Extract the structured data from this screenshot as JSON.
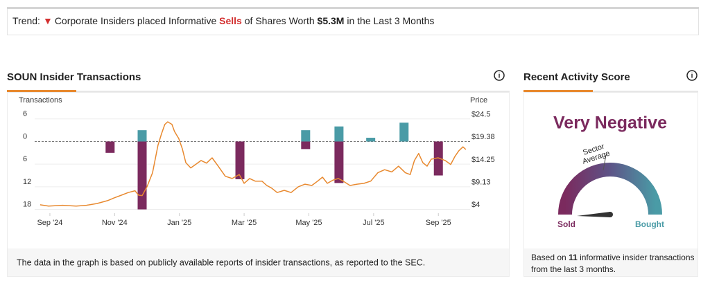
{
  "banner": {
    "label": "Trend:",
    "text_before": "Corporate Insiders placed Informative",
    "action": "Sells",
    "text_middle": "of Shares Worth",
    "amount": "$5.3M",
    "text_after": "in the Last 3 Months"
  },
  "chart_data": {
    "type": "combo",
    "title": "SOUN Insider Transactions",
    "y_label": "Transactions",
    "y2_label": "Price",
    "xlim": [
      -0.47,
      12.98
    ],
    "xticks": [
      {
        "value": 0,
        "label": "Sep '24"
      },
      {
        "value": 2,
        "label": "Nov '24"
      },
      {
        "value": 4,
        "label": "Jan '25"
      },
      {
        "value": 6,
        "label": "Mar '25"
      },
      {
        "value": 8,
        "label": "May '25"
      },
      {
        "value": 10,
        "label": "Jul '25"
      },
      {
        "value": 12,
        "label": "Sep '25"
      }
    ],
    "ylim": [
      -19,
      10
    ],
    "yticks": [
      6,
      0,
      {
        "value": -6,
        "label": "6"
      },
      {
        "value": -12,
        "label": "12"
      },
      {
        "value": -18,
        "label": "18"
      }
    ],
    "y2lim": [
      3.2,
      28.1
    ],
    "y2ticks": [
      {
        "value": 24.5,
        "label": "$24.5"
      },
      {
        "value": 19.38,
        "label": "$19.38"
      },
      {
        "value": 14.25,
        "label": "$14.25"
      },
      {
        "value": 9.13,
        "label": "$9.13"
      },
      {
        "value": 4,
        "label": "$4"
      }
    ],
    "grid": true,
    "series": [
      {
        "type": "bar",
        "color": "#4a9ba6",
        "x": [
          2.85,
          7.9,
          8.93,
          9.91,
          10.94
        ],
        "values": [
          3,
          3,
          4,
          1,
          5
        ]
      },
      {
        "type": "bar",
        "color": "#7b2a5e",
        "x": [
          1.86,
          2.85,
          5.87,
          7.9,
          8.93,
          12.0
        ],
        "values": [
          -3,
          -18,
          -10,
          -2,
          -11,
          -9
        ]
      },
      {
        "type": "line",
        "color": "#e8892f",
        "axis": "y2",
        "x": [
          -0.3,
          -0.04,
          0.39,
          0.81,
          1.13,
          1.46,
          1.78,
          1.99,
          2.21,
          2.42,
          2.63,
          2.74,
          2.85,
          3.0,
          3.17,
          3.34,
          3.45,
          3.55,
          3.64,
          3.77,
          3.85,
          3.98,
          4.09,
          4.2,
          4.35,
          4.5,
          4.67,
          4.84,
          5.01,
          5.2,
          5.42,
          5.63,
          5.85,
          6.0,
          6.17,
          6.34,
          6.55,
          6.7,
          6.85,
          7.02,
          7.24,
          7.45,
          7.67,
          7.88,
          8.09,
          8.27,
          8.42,
          8.57,
          8.74,
          8.91,
          9.06,
          9.27,
          9.49,
          9.7,
          9.91,
          10.13,
          10.34,
          10.56,
          10.77,
          10.98,
          11.13,
          11.26,
          11.39,
          11.52,
          11.65,
          11.78,
          11.99,
          12.21,
          12.38,
          12.51,
          12.63,
          12.76,
          12.85
        ],
        "values": [
          5.1,
          4.8,
          5.0,
          4.8,
          5.0,
          5.4,
          6.05,
          6.7,
          7.3,
          7.9,
          8.3,
          7.3,
          7.2,
          9.2,
          12.4,
          18.7,
          21.3,
          23.4,
          24.0,
          23.4,
          21.8,
          20.2,
          17.9,
          14.7,
          13.5,
          14.3,
          15.2,
          14.6,
          15.8,
          13.9,
          11.6,
          11.1,
          12.0,
          10.0,
          11.1,
          10.5,
          10.5,
          9.5,
          8.9,
          7.9,
          8.4,
          7.9,
          9.2,
          9.8,
          9.5,
          10.5,
          11.4,
          10.0,
          10.7,
          11.1,
          10.5,
          9.5,
          9.8,
          10.0,
          10.5,
          12.4,
          13.1,
          12.6,
          13.9,
          12.4,
          12.0,
          15.2,
          16.8,
          14.7,
          13.9,
          15.5,
          15.8,
          15.2,
          14.3,
          16.1,
          17.4,
          18.3,
          17.7
        ]
      }
    ],
    "footnote": "The data in the graph is based on publicly available reports of insider transactions, as reported to the SEC."
  },
  "activity_score": {
    "title": "Recent Activity Score",
    "rating": "Very Negative",
    "benchmark_label": [
      "Sector",
      "Average"
    ],
    "low_label": "Sold",
    "high_label": "Bought",
    "summary_before": "Based on",
    "transaction_count": 11,
    "summary_line1_after": "informative insider transactions",
    "summary_line2": "from the last 3 months."
  }
}
